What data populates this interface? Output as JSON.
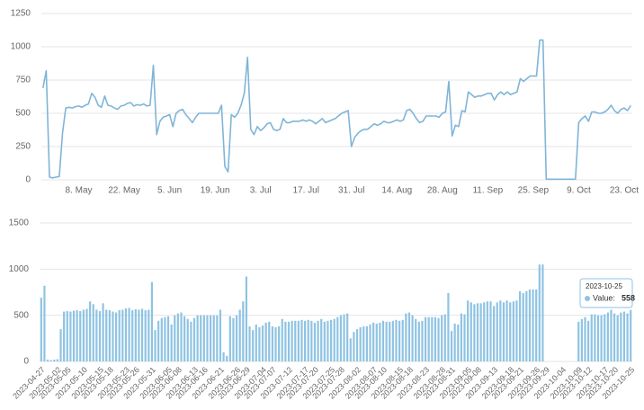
{
  "chart_data": [
    {
      "type": "line",
      "color": "#7fb5d8",
      "ylim": [
        0,
        1250
      ],
      "yticks": [
        0,
        250,
        500,
        750,
        1000,
        1250
      ],
      "grid": true,
      "categories": [
        null,
        null,
        null,
        null,
        null,
        null,
        null,
        null,
        null,
        null,
        null,
        "8. May",
        null,
        null,
        null,
        null,
        null,
        null,
        null,
        null,
        null,
        null,
        null,
        null,
        null,
        "22. May",
        null,
        null,
        null,
        null,
        null,
        null,
        null,
        null,
        null,
        null,
        null,
        null,
        null,
        "5. Jun",
        null,
        null,
        null,
        null,
        null,
        null,
        null,
        null,
        null,
        null,
        null,
        null,
        null,
        "19. Jun",
        null,
        null,
        null,
        null,
        null,
        null,
        null,
        null,
        null,
        null,
        null,
        null,
        null,
        "3. Jul",
        null,
        null,
        null,
        null,
        null,
        null,
        null,
        null,
        null,
        null,
        null,
        null,
        null,
        "17. Jul",
        null,
        null,
        null,
        null,
        null,
        null,
        null,
        null,
        null,
        null,
        null,
        null,
        null,
        "31. Jul",
        null,
        null,
        null,
        null,
        null,
        null,
        null,
        null,
        null,
        null,
        null,
        null,
        null,
        "14. Aug",
        null,
        null,
        null,
        null,
        null,
        null,
        null,
        null,
        null,
        null,
        null,
        null,
        null,
        "28. Aug",
        null,
        null,
        null,
        null,
        null,
        null,
        null,
        null,
        null,
        null,
        null,
        null,
        null,
        "11. Sep",
        null,
        null,
        null,
        null,
        null,
        null,
        null,
        null,
        null,
        null,
        null,
        null,
        null,
        "25. Sep",
        null,
        null,
        null,
        null,
        null,
        null,
        null,
        null,
        null,
        null,
        null,
        null,
        null,
        "9. Oct",
        null,
        null,
        null,
        null,
        null,
        null,
        null,
        null,
        null,
        null,
        null,
        null,
        null,
        "23. Oct",
        null,
        null
      ],
      "values": [
        690,
        820,
        20,
        15,
        20,
        25,
        350,
        540,
        545,
        540,
        550,
        555,
        545,
        560,
        570,
        650,
        620,
        560,
        545,
        630,
        560,
        555,
        540,
        530,
        555,
        560,
        575,
        580,
        555,
        565,
        560,
        570,
        555,
        560,
        860,
        340,
        440,
        470,
        480,
        490,
        400,
        500,
        520,
        530,
        490,
        460,
        430,
        470,
        500,
        500,
        500,
        500,
        500,
        500,
        500,
        560,
        100,
        60,
        490,
        470,
        500,
        560,
        650,
        920,
        380,
        340,
        400,
        370,
        390,
        420,
        430,
        380,
        370,
        380,
        460,
        430,
        430,
        440,
        440,
        440,
        450,
        440,
        450,
        440,
        420,
        440,
        460,
        430,
        440,
        450,
        460,
        480,
        500,
        510,
        520,
        250,
        320,
        350,
        370,
        380,
        380,
        400,
        420,
        410,
        420,
        440,
        430,
        430,
        440,
        450,
        440,
        450,
        520,
        530,
        500,
        460,
        430,
        440,
        480,
        480,
        480,
        480,
        470,
        500,
        510,
        740,
        330,
        410,
        400,
        520,
        510,
        660,
        640,
        620,
        630,
        630,
        640,
        650,
        650,
        600,
        640,
        660,
        640,
        660,
        640,
        650,
        660,
        760,
        740,
        760,
        780,
        780,
        780,
        1050,
        1050,
        5,
        5,
        5,
        5,
        5,
        5,
        5,
        5,
        5,
        5,
        430,
        460,
        480,
        440,
        510,
        510,
        500,
        500,
        510,
        530,
        560,
        520,
        500,
        530,
        540,
        520,
        558
      ]
    },
    {
      "type": "bar",
      "color": "#8fc3e3",
      "ylim": [
        0,
        1500
      ],
      "yticks": [
        0,
        500,
        1000,
        1500
      ],
      "grid": true,
      "tooltip_label": "Value:",
      "categories": [
        "2023-04-27",
        null,
        null,
        null,
        null,
        "2023-05-02",
        null,
        null,
        "2023-05-05",
        null,
        null,
        null,
        null,
        "2023-05-10",
        null,
        null,
        null,
        null,
        "2023-05-15",
        null,
        null,
        "2023-05-18",
        null,
        null,
        null,
        null,
        "2023-05-23",
        null,
        null,
        "2023-05-26",
        null,
        null,
        null,
        null,
        "2023-05-31",
        null,
        null,
        null,
        null,
        "2023-06-05",
        null,
        null,
        "2023-06-08",
        null,
        null,
        null,
        null,
        "2023-06-13",
        null,
        null,
        "2023-06-16",
        null,
        null,
        null,
        null,
        "2023-06-21",
        null,
        null,
        null,
        null,
        "2023-06-26",
        null,
        null,
        "2023-06-29",
        null,
        null,
        null,
        null,
        "2023-07-04",
        null,
        null,
        "2023-07-07",
        null,
        null,
        null,
        null,
        "2023-07-12",
        null,
        null,
        null,
        null,
        "2023-07-17",
        null,
        null,
        "2023-07-20",
        null,
        null,
        null,
        null,
        "2023-07-25",
        null,
        null,
        "2023-07-28",
        null,
        null,
        null,
        null,
        "2023-08-02",
        null,
        null,
        null,
        null,
        "2023-08-07",
        null,
        null,
        "2023-08-10",
        null,
        null,
        null,
        null,
        "2023-08-15",
        null,
        null,
        "2023-08-18",
        null,
        null,
        null,
        null,
        "2023-08-23",
        null,
        null,
        null,
        null,
        "2023-08-28",
        null,
        null,
        "2023-08-31",
        null,
        null,
        null,
        null,
        "2023-09-05",
        null,
        null,
        "2023-09-08",
        null,
        null,
        null,
        null,
        "2023-09-13",
        null,
        null,
        null,
        null,
        "2023-09-18",
        null,
        null,
        "2023-09-21",
        null,
        null,
        null,
        null,
        "2023-09-26",
        null,
        null,
        "2023-09-29",
        null,
        null,
        null,
        null,
        "2023-10-04",
        null,
        null,
        null,
        null,
        "2023-10-09",
        null,
        null,
        "2023-10-12",
        null,
        null,
        null,
        null,
        "2023-10-17",
        null,
        null,
        "2023-10-20",
        null,
        null,
        null,
        null,
        "2023-10-25"
      ],
      "values": [
        690,
        820,
        20,
        15,
        20,
        25,
        350,
        540,
        545,
        540,
        550,
        555,
        545,
        560,
        570,
        650,
        620,
        560,
        545,
        630,
        560,
        555,
        540,
        530,
        555,
        560,
        575,
        580,
        555,
        565,
        560,
        570,
        555,
        560,
        860,
        340,
        440,
        470,
        480,
        490,
        400,
        500,
        520,
        530,
        490,
        460,
        430,
        470,
        500,
        500,
        500,
        500,
        500,
        500,
        500,
        560,
        100,
        60,
        490,
        470,
        500,
        560,
        650,
        920,
        380,
        340,
        400,
        370,
        390,
        420,
        430,
        380,
        370,
        380,
        460,
        430,
        430,
        440,
        440,
        440,
        450,
        440,
        450,
        440,
        420,
        440,
        460,
        430,
        440,
        450,
        460,
        480,
        500,
        510,
        520,
        250,
        320,
        350,
        370,
        380,
        380,
        400,
        420,
        410,
        420,
        440,
        430,
        430,
        440,
        450,
        440,
        450,
        520,
        530,
        500,
        460,
        430,
        440,
        480,
        480,
        480,
        480,
        470,
        500,
        510,
        740,
        330,
        410,
        400,
        520,
        510,
        660,
        640,
        620,
        630,
        630,
        640,
        650,
        650,
        600,
        640,
        660,
        640,
        660,
        640,
        650,
        660,
        760,
        740,
        760,
        780,
        780,
        780,
        1050,
        1050,
        0,
        0,
        0,
        0,
        0,
        0,
        0,
        0,
        0,
        0,
        430,
        460,
        480,
        440,
        510,
        510,
        500,
        500,
        510,
        530,
        560,
        520,
        500,
        530,
        540,
        520,
        558
      ]
    }
  ]
}
